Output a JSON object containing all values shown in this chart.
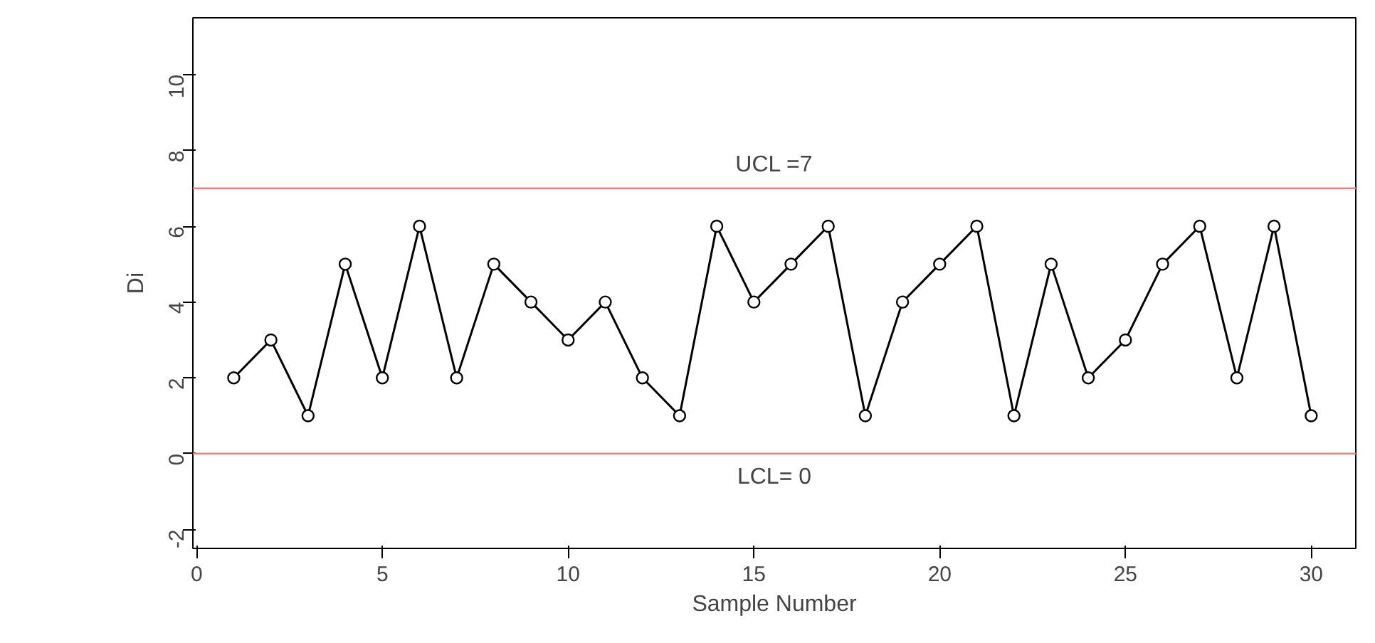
{
  "chart_data": {
    "type": "line",
    "xlabel": "Sample Number",
    "ylabel": "Di",
    "x": [
      1,
      2,
      3,
      4,
      5,
      6,
      7,
      8,
      9,
      10,
      11,
      12,
      13,
      14,
      15,
      16,
      17,
      18,
      19,
      20,
      21,
      22,
      23,
      24,
      25,
      26,
      27,
      28,
      29,
      30
    ],
    "series": [
      {
        "color": "#000000",
        "values": [
          2,
          3,
          1,
          5,
          2,
          6,
          2,
          5,
          4,
          3,
          4,
          2,
          1,
          6,
          4,
          5,
          6,
          1,
          4,
          5,
          6,
          1,
          5,
          2,
          3,
          5,
          6,
          2,
          6,
          1
        ]
      }
    ],
    "marker": "circle",
    "line_style": "solid",
    "grid": false,
    "xlim": [
      -0.1,
      31.2
    ],
    "ylim": [
      -2.5,
      11.5
    ],
    "xticks": [
      0,
      5,
      10,
      15,
      20,
      25,
      30
    ],
    "yticks": [
      -2,
      0,
      2,
      4,
      6,
      8,
      10
    ],
    "ref_lines": [
      {
        "axis": "y",
        "value": 7,
        "label": "UCL =7",
        "color": "#f08080"
      },
      {
        "axis": "y",
        "value": 0,
        "label": "LCL= 0",
        "color": "#f08080"
      }
    ]
  }
}
